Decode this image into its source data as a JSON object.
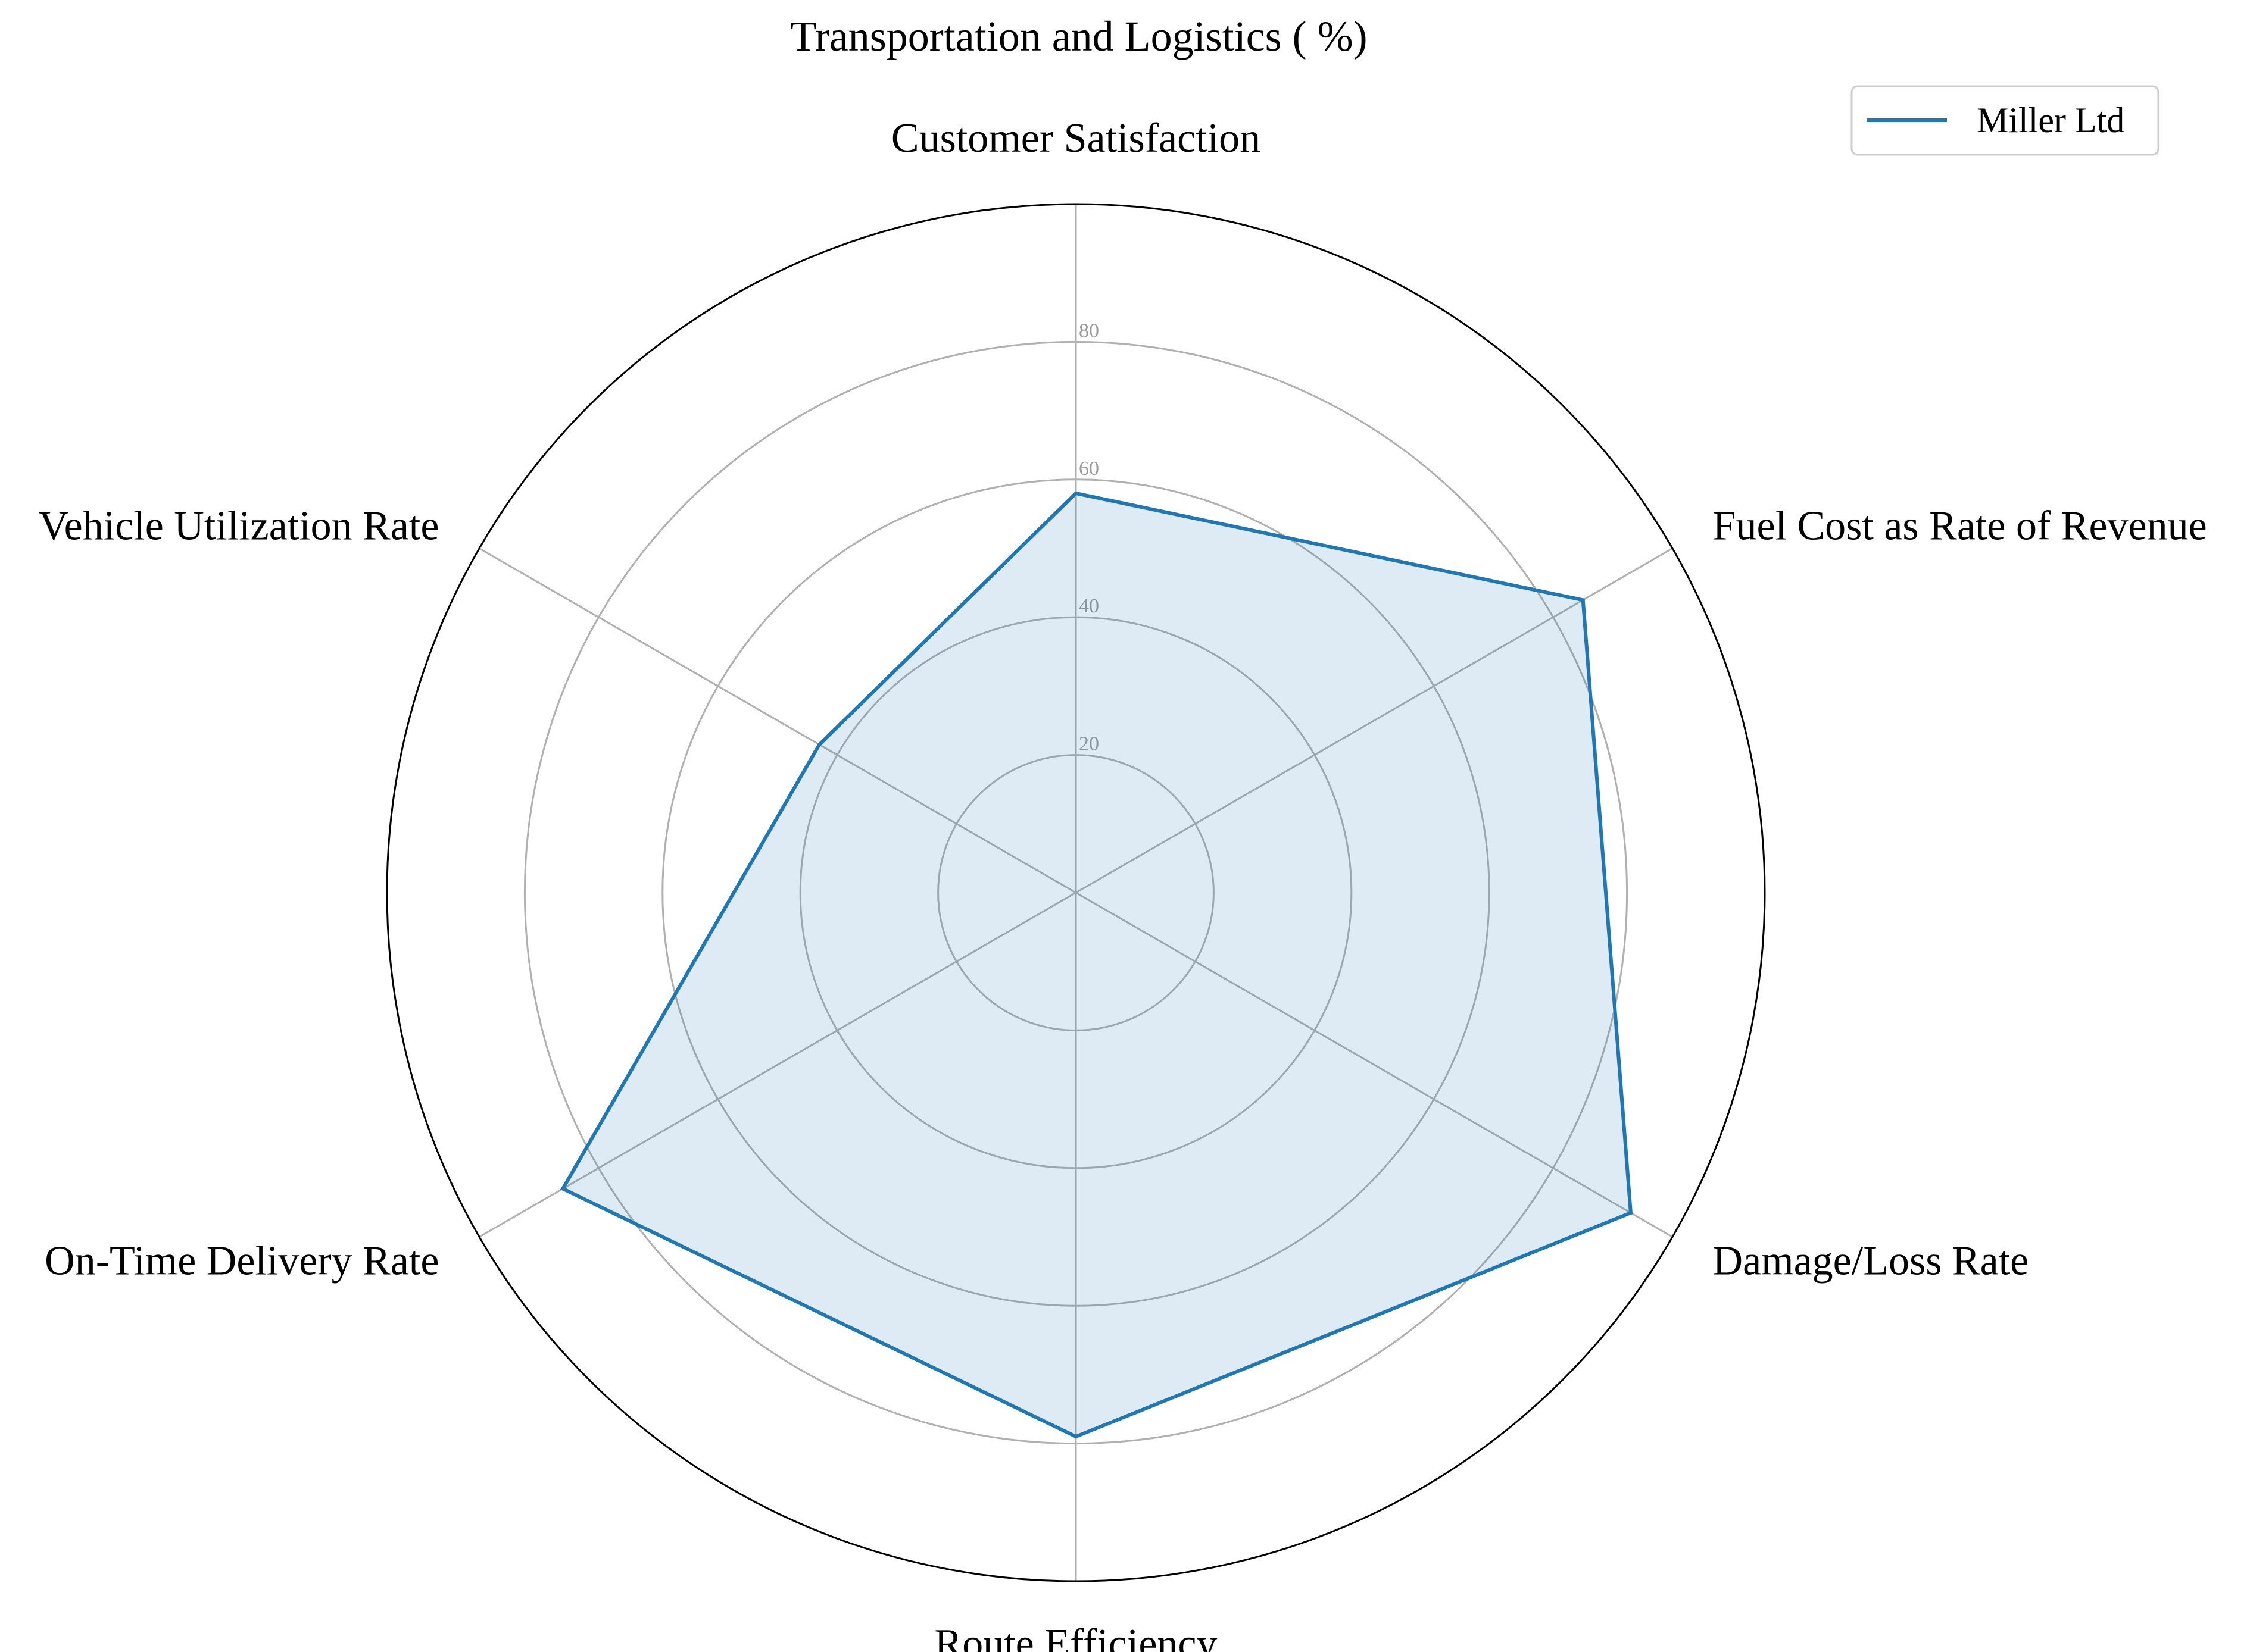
{
  "chart_data": {
    "type": "radar",
    "title": "Transportation and Logistics ( %)",
    "axes": [
      "Customer Satisfaction",
      "Fuel Cost as Rate of Revenue",
      "Damage/Loss Rate",
      "Route Efficiency",
      "On-Time Delivery Rate",
      "Vehicle Utilization Rate"
    ],
    "rlim": [
      0,
      100
    ],
    "rticks": [
      20,
      40,
      60,
      80
    ],
    "rtick_labels": [
      "20",
      "40",
      "60",
      "80"
    ],
    "grid": true,
    "legend_position": "top-right",
    "series": [
      {
        "name": "Miller Ltd",
        "values": [
          58,
          85,
          93,
          79,
          86,
          43
        ],
        "color": "#1f77b4",
        "fill_color": "#1f77b4",
        "fill_opacity": 0.15
      }
    ]
  }
}
